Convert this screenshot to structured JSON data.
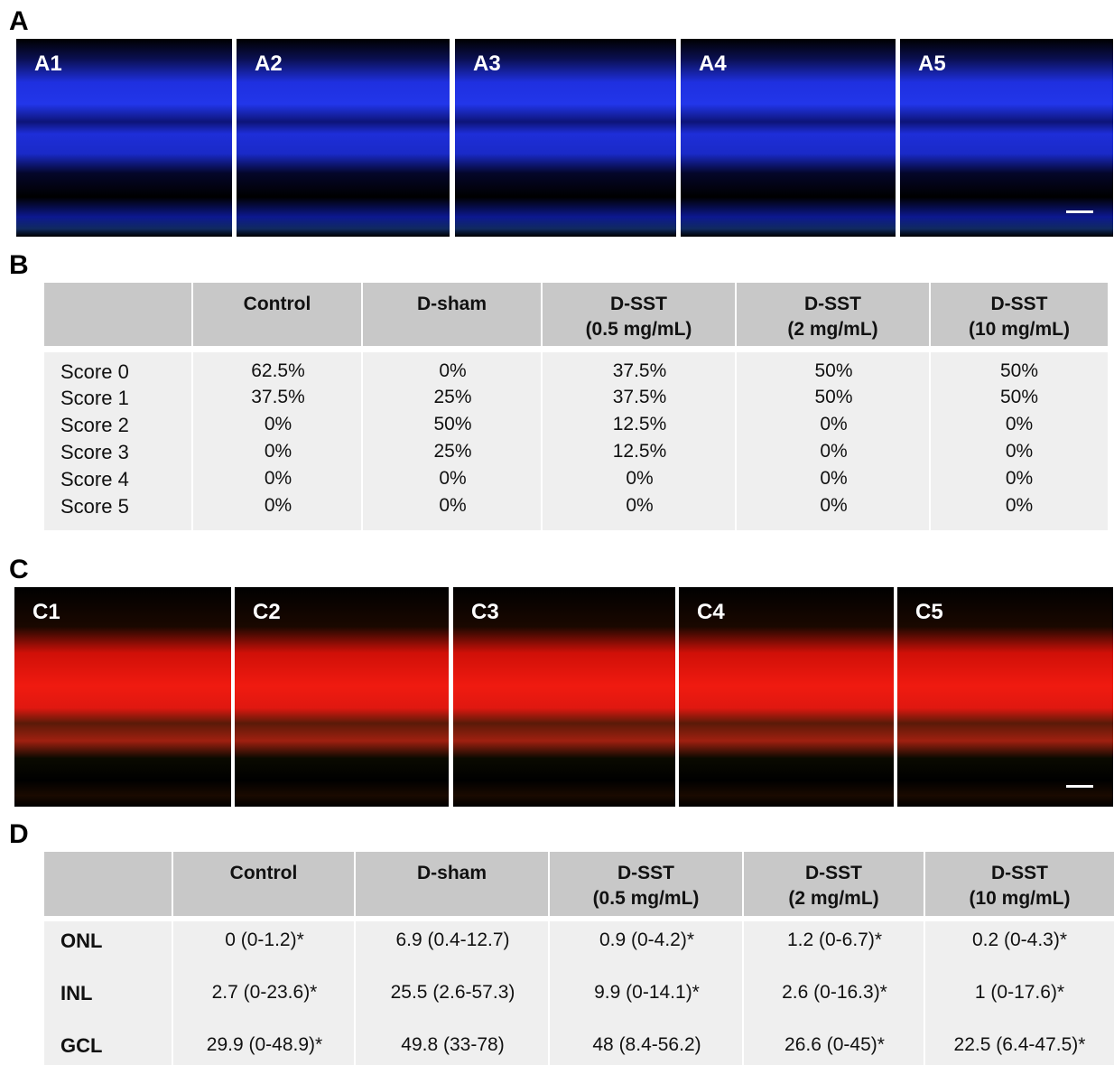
{
  "panel_a": {
    "label": "A",
    "images": [
      "A1",
      "A2",
      "A3",
      "A4",
      "A5"
    ]
  },
  "panel_b": {
    "label": "B",
    "columns": [
      [
        "Control"
      ],
      [
        "D-sham"
      ],
      [
        "D-SST",
        "(0.5 mg/mL)"
      ],
      [
        "D-SST",
        "(2 mg/mL)"
      ],
      [
        "D-SST",
        "(10 mg/mL)"
      ]
    ],
    "rows": [
      {
        "label": "Score 0",
        "cells": [
          "62.5%",
          "0%",
          "37.5%",
          "50%",
          "50%"
        ]
      },
      {
        "label": "Score 1",
        "cells": [
          "37.5%",
          "25%",
          "37.5%",
          "50%",
          "50%"
        ]
      },
      {
        "label": "Score 2",
        "cells": [
          "0%",
          "50%",
          "12.5%",
          "0%",
          "0%"
        ]
      },
      {
        "label": "Score 3",
        "cells": [
          "0%",
          "25%",
          "12.5%",
          "0%",
          "0%"
        ]
      },
      {
        "label": "Score 4",
        "cells": [
          "0%",
          "0%",
          "0%",
          "0%",
          "0%"
        ]
      },
      {
        "label": "Score 5",
        "cells": [
          "0%",
          "0%",
          "0%",
          "0%",
          "0%"
        ]
      }
    ]
  },
  "panel_c": {
    "label": "C",
    "images": [
      "C1",
      "C2",
      "C3",
      "C4",
      "C5"
    ]
  },
  "panel_d": {
    "label": "D",
    "columns": [
      [
        "Control"
      ],
      [
        "D-sham"
      ],
      [
        "D-SST",
        "(0.5 mg/mL)"
      ],
      [
        "D-SST",
        "(2 mg/mL)"
      ],
      [
        "D-SST",
        "(10 mg/mL)"
      ]
    ],
    "rows": [
      {
        "label": "ONL",
        "cells": [
          "0 (0-1.2)*",
          "6.9 (0.4-12.7)",
          "0.9 (0-4.2)*",
          "1.2 (0-6.7)*",
          "0.2 (0-4.3)*"
        ]
      },
      {
        "label": "INL",
        "cells": [
          "2.7 (0-23.6)*",
          "25.5 (2.6-57.3)",
          "9.9 (0-14.1)*",
          "2.6 (0-16.3)*",
          "1 (0-17.6)*"
        ]
      },
      {
        "label": "GCL",
        "cells": [
          "29.9 (0-48.9)*",
          "49.8  (33-78)",
          "48 (8.4-56.2)",
          "26.6 (0-45)*",
          "22.5 (6.4-47.5)*"
        ]
      }
    ]
  }
}
